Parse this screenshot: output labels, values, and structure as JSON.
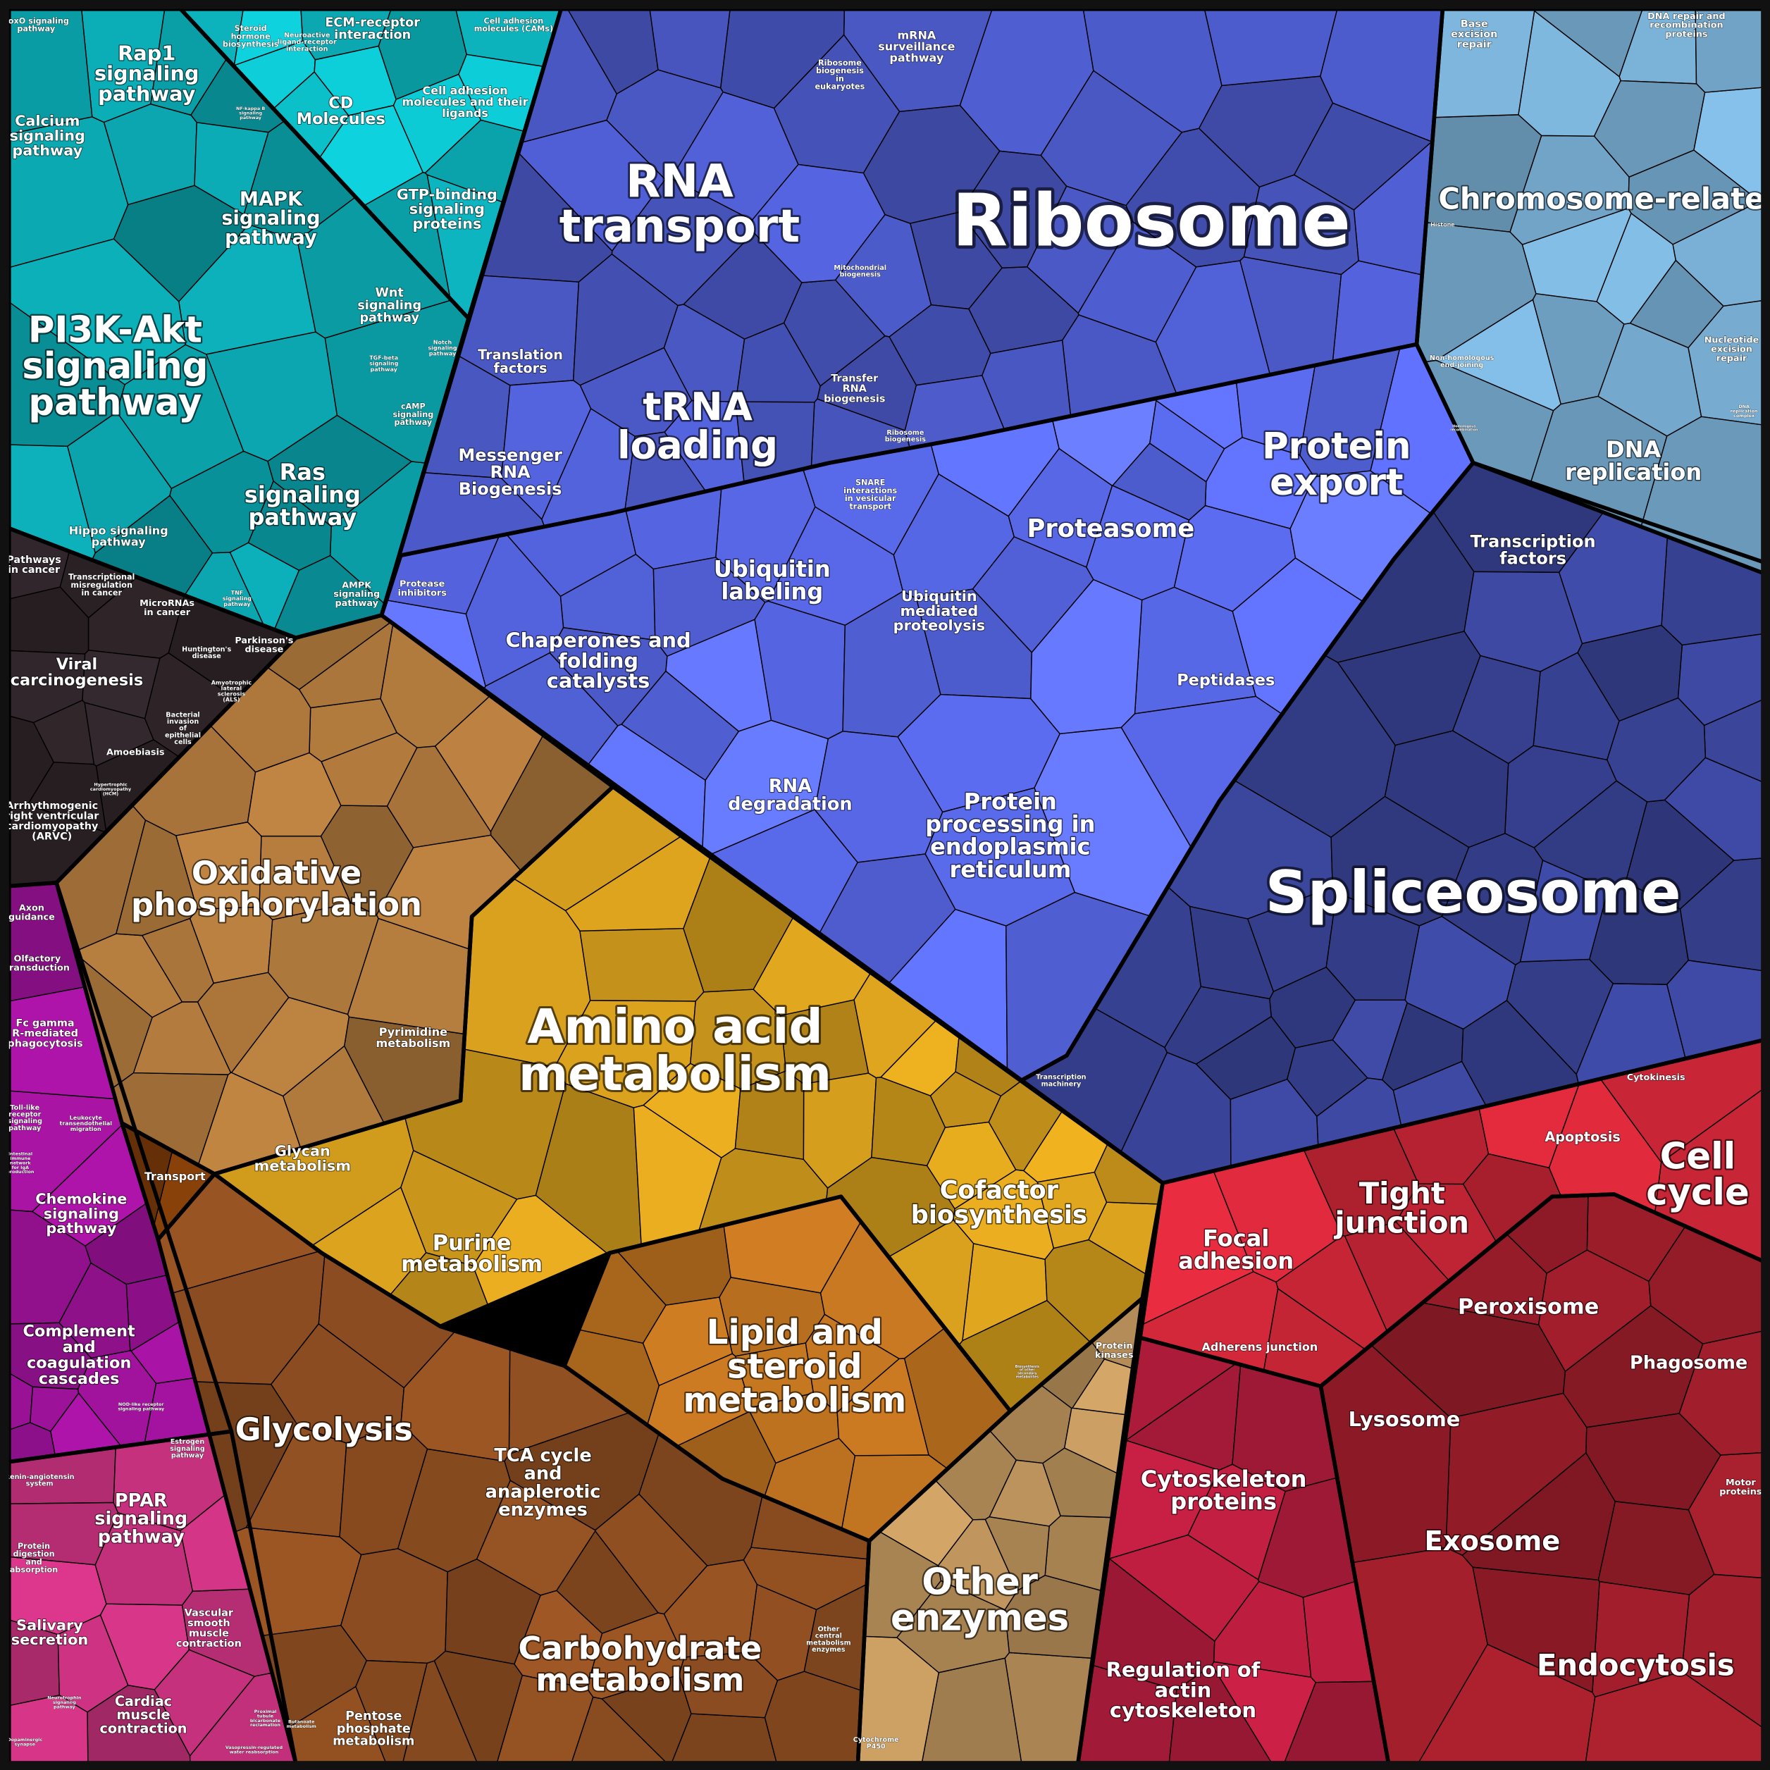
{
  "chart_data": {
    "type": "treemap",
    "title": "",
    "groups": [
      {
        "color": "#0a9aa2",
        "pathways": [
          "FoxO signaling pathway",
          "Rap1 signaling pathway",
          "Calcium signaling pathway",
          "Steroid hormone biosynthesis",
          "Neuroactive ligand-receptor interaction",
          "ECM-receptor interaction",
          "Cell adhesion molecules (CAMs)",
          "NF-kappa B signaling pathway",
          "CD Molecules",
          "Cell adhesion molecules and their ligands",
          "MAPK signaling pathway",
          "GTP-binding signaling proteins",
          "PI3K-Akt signaling pathway",
          "Wnt signaling pathway",
          "Notch signaling pathway",
          "TGF-beta signaling pathway",
          "cAMP signaling pathway",
          "Ras signaling pathway",
          "Hippo signaling pathway",
          "TNF signaling pathway",
          "AMPK signaling pathway"
        ]
      },
      {
        "color": "#2e2428",
        "pathways": [
          "Pathways in cancer",
          "Transcriptional misregulation in cancer",
          "MicroRNAs in cancer",
          "Huntington's disease",
          "Parkinson's disease",
          "Viral carcinogenesis",
          "Amyotrophic lateral sclerosis (ALS)",
          "Bacterial invasion of epithelial cells",
          "Amoebiasis",
          "Hypertrophic cardiomyopathy (HCM)",
          "Arrhythmogenic right ventricular cardiomyopathy (ARVC)"
        ]
      },
      {
        "color": "#9a1296",
        "pathways": [
          "Axon guidance",
          "Olfactory transduction",
          "Fc gamma R-mediated phagocytosis",
          "Toll-like receptor signaling pathway",
          "Leukocyte transendothelial migration",
          "Intestinal immune network for IgA production",
          "Chemokine signaling pathway",
          "Complement and coagulation cascades",
          "NOD-like receptor signaling pathway",
          "Estrogen signaling pathway",
          "Renin-angiotensin system",
          "PPAR signaling pathway",
          "Protein digestion and absorption",
          "Salivary secretion",
          "Vascular smooth muscle contraction",
          "Cardiac muscle contraction",
          "Neurotrophin signaling pathway",
          "Dopaminergic synapse",
          "Proximal tubule bicarbonate reclamation",
          "Vasopressin-regulated water reabsorption"
        ]
      },
      {
        "color": "#d09a1c",
        "pathways": [
          "Oxidative phosphorylation",
          "Transport",
          "Pyrimidine metabolism",
          "Amino acid metabolism",
          "Glycan metabolism",
          "Cofactor biosynthesis",
          "Purine metabolism",
          "Lipid and steroid metabolism",
          "Glycolysis",
          "TCA cycle and anaplerotic enzymes",
          "Biosynthesis of other secondary metabolites",
          "Protein kinases",
          "Carbohydrate metabolism",
          "Other central metabolism enzymes",
          "Other enzymes",
          "Butanoate metabolism",
          "Pentose phosphate metabolism",
          "Cytochrome P450"
        ]
      },
      {
        "color": "#4a58c4",
        "pathways": [
          "RNA transport",
          "Ribosome biogenesis in eukaryotes",
          "mRNA surveillance pathway",
          "Ribosome",
          "Mitochondrial biogenesis",
          "Translation factors",
          "tRNA loading",
          "Transfer RNA biogenesis",
          "Ribosome biogenesis",
          "Messenger RNA Biogenesis",
          "Protease inhibitors",
          "SNARE interactions in vesicular transport",
          "Ubiquitin labeling",
          "Chaperones and folding catalysts",
          "Ubiquitin mediated proteolysis",
          "Proteasome",
          "Protein export",
          "Peptidases",
          "RNA degradation",
          "Protein processing in endoplasmic reticulum",
          "Transcription machinery",
          "Spliceosome",
          "Transcription factors"
        ]
      },
      {
        "color": "#74a8cc",
        "pathways": [
          "Base excision repair",
          "DNA repair and recombination proteins",
          "Histone",
          "Chromosome-related",
          "Non-homologous end-joining",
          "Nucleotide excision repair",
          "Homologous recombination",
          "DNA replication complex",
          "DNA replication"
        ]
      },
      {
        "color": "#c02434",
        "pathways": [
          "Cytokinesis",
          "Apoptosis",
          "Cell cycle",
          "Tight junction",
          "Focal adhesion",
          "Peroxisome",
          "Phagosome",
          "Adherens junction",
          "Lysosome",
          "Cytoskeleton proteins",
          "Exosome",
          "Motor proteins",
          "Endocytosis",
          "Regulation of actin cytoskeleton"
        ]
      }
    ]
  }
}
